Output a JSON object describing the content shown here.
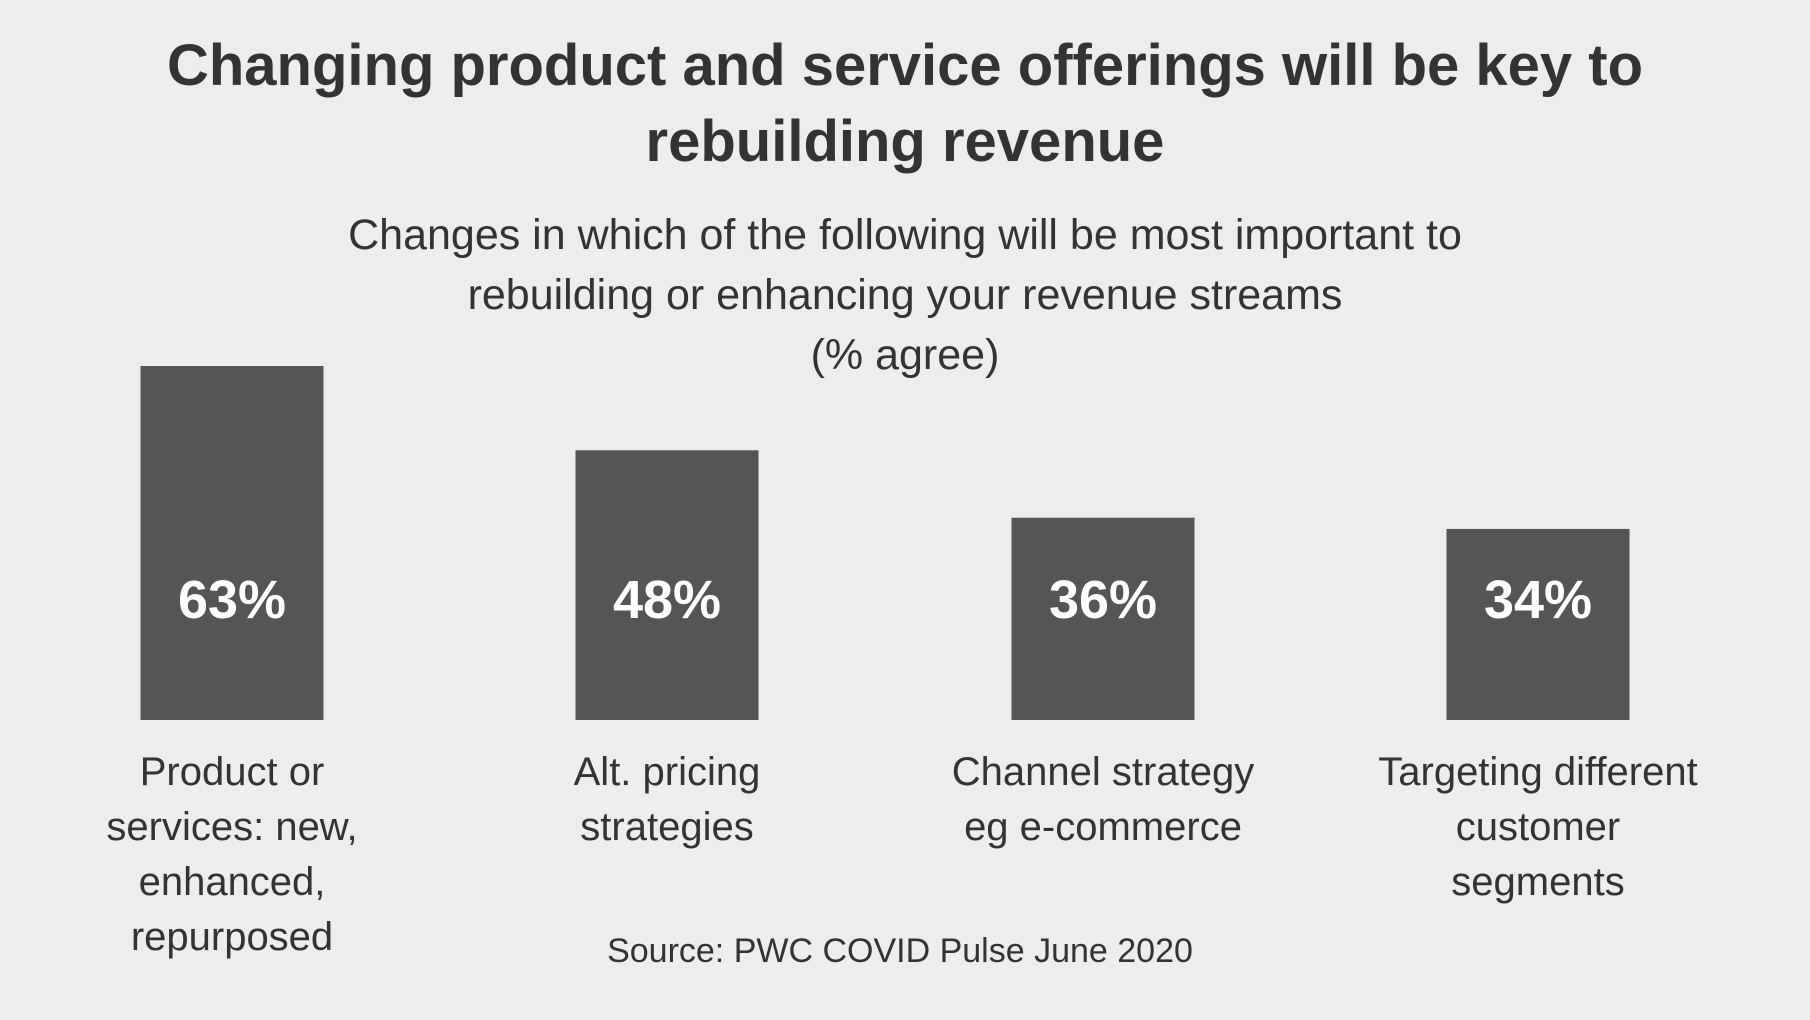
{
  "chart_data": {
    "type": "bar",
    "title": "Changing product and service offerings will be key to rebuilding revenue",
    "subtitle_lines": [
      "Changes in which of the following will be most important to",
      "rebuilding or enhancing your revenue streams",
      "(% agree)"
    ],
    "categories": [
      "Product or services: new, enhanced, repurposed",
      "Alt. pricing strategies",
      "Channel strategy eg e-commerce",
      "Targeting different customer segments"
    ],
    "category_lines": [
      [
        "Product or",
        "services: new,",
        "enhanced,",
        "repurposed"
      ],
      [
        "Alt. pricing",
        "strategies"
      ],
      [
        "Channel strategy",
        "eg e-commerce"
      ],
      [
        "Targeting different",
        "customer",
        "segments"
      ]
    ],
    "values": [
      63,
      48,
      36,
      34
    ],
    "value_labels": [
      "63%",
      "48%",
      "36%",
      "34%"
    ],
    "ylim": [
      0,
      63
    ],
    "bar_color": "#555555",
    "label_color": "#ffffff",
    "background": "#ededed",
    "source": "Source: PWC COVID Pulse June 2020"
  }
}
